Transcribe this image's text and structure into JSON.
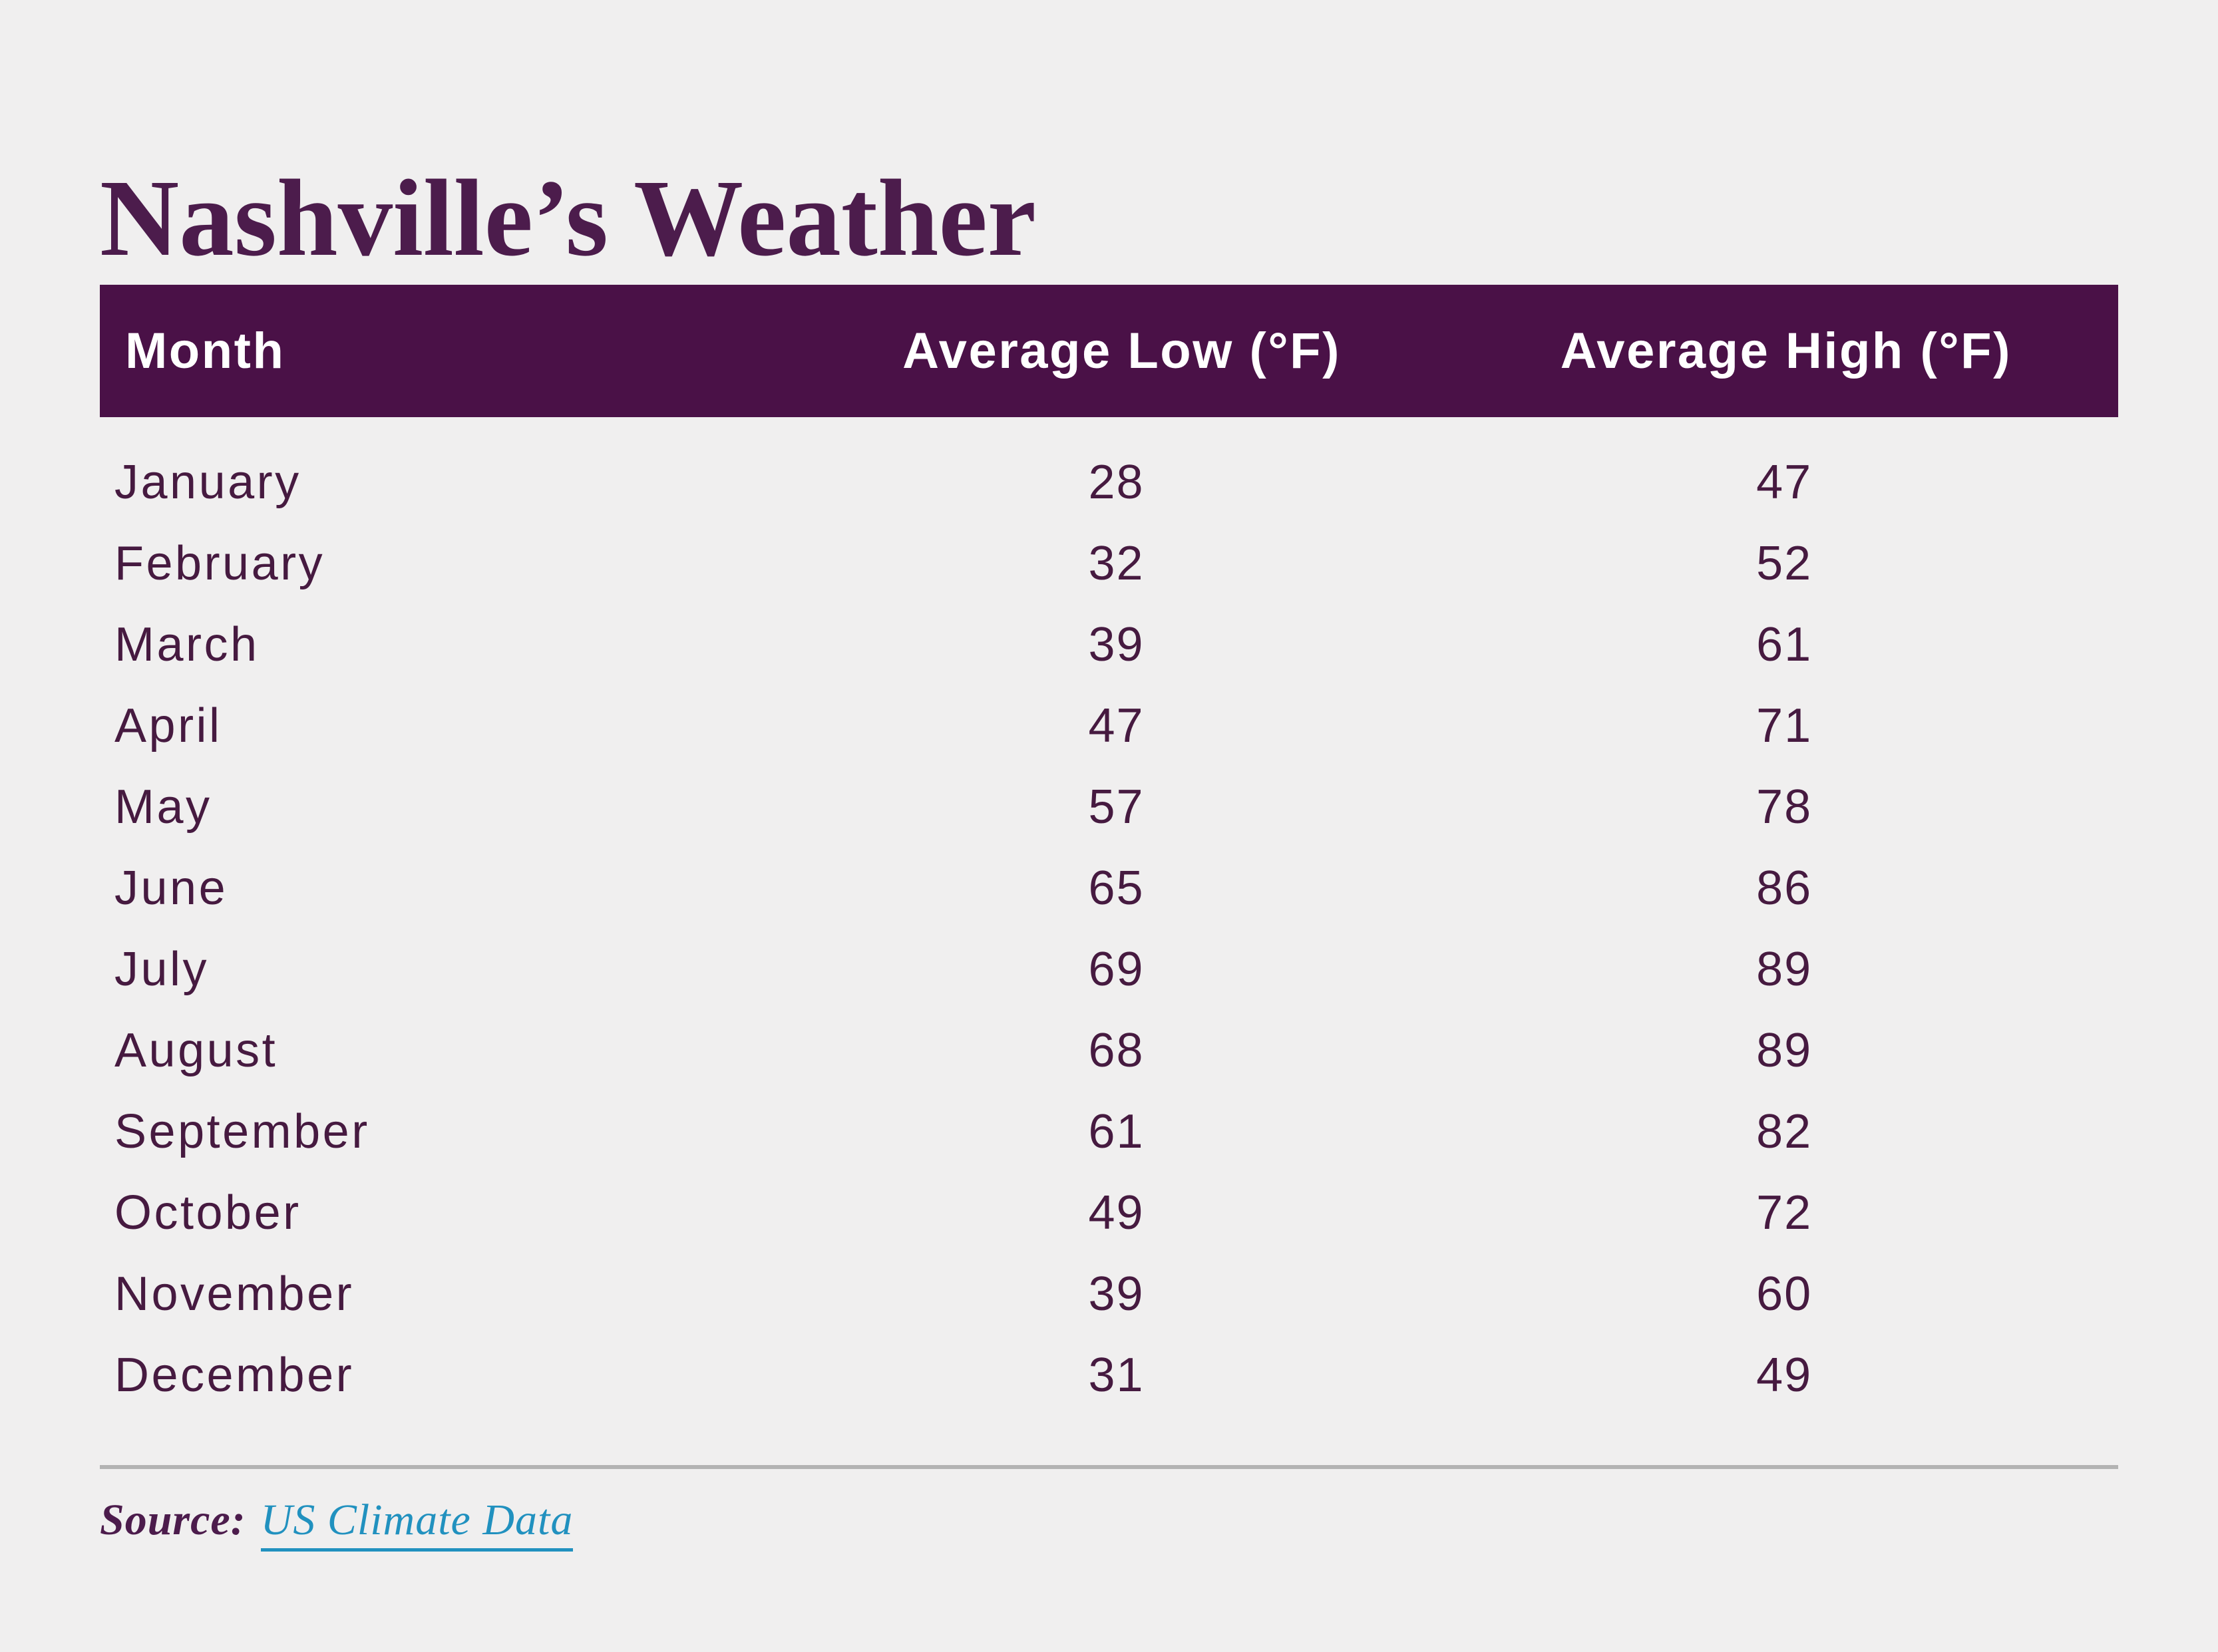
{
  "page": {
    "title": "Nashville’s Weather"
  },
  "colors": {
    "background": "#f0efef",
    "header_bg": "#4a1147",
    "header_text": "#ffffff",
    "body_text": "#461a40",
    "title": "#4c1c4c",
    "link": "#2191bf",
    "divider": "#b3b3b3"
  },
  "table": {
    "month_header": "Month"
  },
  "chart_data": {
    "type": "table",
    "title": "Nashville’s Weather",
    "categories": [
      "January",
      "February",
      "March",
      "April",
      "May",
      "June",
      "July",
      "August",
      "September",
      "October",
      "November",
      "December"
    ],
    "series": [
      {
        "name": "Average Low (°F)",
        "values": [
          28,
          32,
          39,
          47,
          57,
          65,
          69,
          68,
          61,
          49,
          39,
          31
        ]
      },
      {
        "name": "Average High (°F)",
        "values": [
          47,
          52,
          61,
          71,
          78,
          86,
          89,
          89,
          82,
          72,
          60,
          49
        ]
      }
    ]
  },
  "footer": {
    "source_label": "Source:",
    "source_link_text": "US Climate Data"
  }
}
